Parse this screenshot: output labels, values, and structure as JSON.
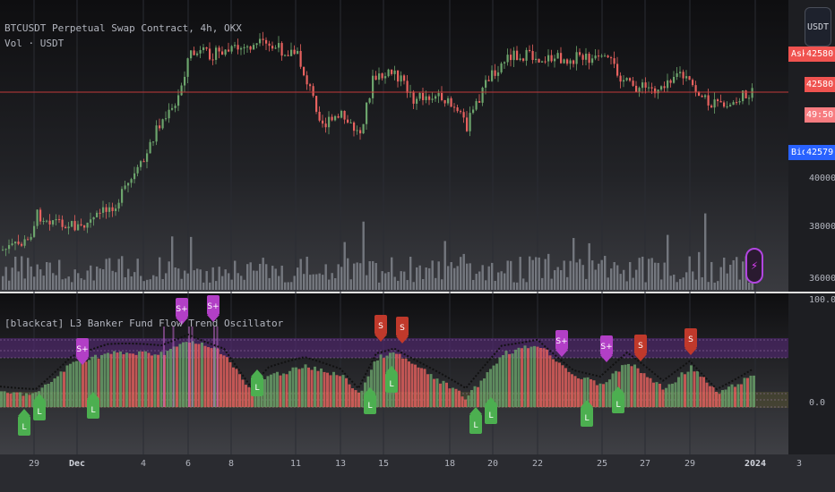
{
  "legend": {
    "main": "BTCUSDT Perpetual Swap Contract, 4h, OKX",
    "volume": "Vol · USDT",
    "indicator": "[blackcat] L3 Banker Fund Flow Trend Oscillator"
  },
  "currency_button": "USDT",
  "price_tags": {
    "ask_label": "Ask",
    "ask_value": "42580.0",
    "last_value": "42580.0",
    "countdown": "49:50",
    "bid_label": "Bid",
    "bid_value": "42579.9"
  },
  "price_axis": {
    "labels": [
      "40000.0",
      "38000.0",
      "36000.0"
    ]
  },
  "indicator_axis": {
    "labels": [
      "100.0",
      "0.0"
    ]
  },
  "time_axis": {
    "labels": [
      "29",
      "Dec",
      "4",
      "6",
      "8",
      "11",
      "13",
      "15",
      "18",
      "20",
      "22",
      "25",
      "27",
      "29",
      "2024",
      "3"
    ]
  },
  "signals": {
    "long": "L",
    "short": "S",
    "strong_short": "S+"
  },
  "colors": {
    "background": "#131722",
    "up": "#6ca46c",
    "down": "#e8625f",
    "volume": "#8a8d95",
    "short_tag": "#c0392b",
    "strong_short_tag": "#b23fc6",
    "long_tag": "#4caf50",
    "price_line": "#c13a3a"
  }
}
